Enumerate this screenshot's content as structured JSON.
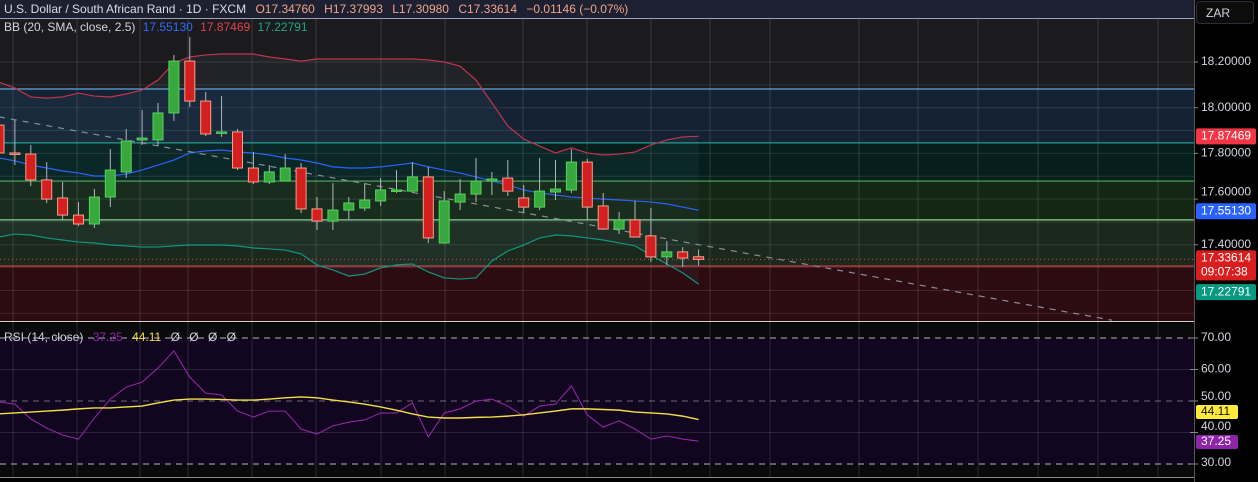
{
  "header": {
    "symbol_title": "U.S. Dollar / South African Rand · 1D · FXCM",
    "open": "O17.34760",
    "high": "H17.37993",
    "low": "L17.30980",
    "close": "C17.33614",
    "change": "−0.01146 (−0.07%)"
  },
  "bb_legend": {
    "label": "BB (20, SMA, close, 2.5)",
    "basis": "17.55130",
    "upper": "17.87469",
    "lower": "17.22791"
  },
  "rsi_legend": {
    "label": "RSI (14, close)",
    "rsi": "37.25",
    "ma": "44.11",
    "extra": [
      "Ø",
      "Ø",
      "Ø",
      "Ø"
    ]
  },
  "currency_button": "ZAR",
  "price_axis": {
    "labels": [
      "18.20000",
      "18.00000",
      "17.80000",
      "17.60000",
      "17.40000"
    ]
  },
  "rsi_axis": {
    "labels": [
      "70.00",
      "60.00",
      "50.00",
      "40.00",
      "30.00"
    ]
  },
  "badges": {
    "bb_upper": "17.87469",
    "bb_basis": "17.55130",
    "last_price": "17.33614",
    "countdown": "09:07:38",
    "bb_lower": "17.22791",
    "rsi_ma": "44.11",
    "rsi": "37.25"
  },
  "colors": {
    "up": "#38a83e",
    "down": "#d21f1f",
    "down_border": "#f5a088",
    "wick": "#b2b5be",
    "bb_upper": "#c2334f",
    "bb_basis": "#2962ff",
    "bb_lower": "#12957f",
    "rsi": "#9c27b0",
    "rsi_ma": "#f2df4a",
    "badge_upper": "#f23645",
    "badge_basis": "#2962ff",
    "badge_last": "#d81e1e",
    "badge_lower": "#089981",
    "badge_rsi_ma": "#ffeb3b",
    "badge_rsi": "#8e24aa"
  },
  "chart_data": {
    "type": "candlestick",
    "timeframe": "1D",
    "price_axis": {
      "ticks": [
        18.2,
        18.0,
        17.8,
        17.6,
        17.4
      ],
      "range": [
        17.05,
        18.33
      ]
    },
    "ohlc": [
      [
        17.924,
        17.946,
        17.771,
        17.802
      ],
      [
        17.802,
        17.946,
        17.749,
        17.797
      ],
      [
        17.797,
        17.837,
        17.657,
        17.684
      ],
      [
        17.684,
        17.762,
        17.583,
        17.6
      ],
      [
        17.605,
        17.675,
        17.509,
        17.53
      ],
      [
        17.53,
        17.587,
        17.482,
        17.491
      ],
      [
        17.491,
        17.644,
        17.474,
        17.609
      ],
      [
        17.609,
        17.819,
        17.565,
        17.727
      ],
      [
        17.719,
        17.907,
        17.692,
        17.854
      ],
      [
        17.859,
        17.99,
        17.837,
        17.867
      ],
      [
        17.859,
        18.021,
        17.832,
        17.977
      ],
      [
        17.977,
        18.231,
        17.942,
        18.204
      ],
      [
        18.204,
        18.309,
        18.003,
        18.029
      ],
      [
        18.029,
        18.069,
        17.876,
        17.885
      ],
      [
        17.889,
        18.051,
        17.872,
        17.894
      ],
      [
        17.894,
        17.907,
        17.727,
        17.736
      ],
      [
        17.736,
        17.806,
        17.666,
        17.675
      ],
      [
        17.675,
        17.749,
        17.666,
        17.719
      ],
      [
        17.679,
        17.797,
        17.679,
        17.736
      ],
      [
        17.736,
        17.758,
        17.539,
        17.557
      ],
      [
        17.557,
        17.609,
        17.465,
        17.504
      ],
      [
        17.504,
        17.67,
        17.465,
        17.552
      ],
      [
        17.552,
        17.609,
        17.513,
        17.583
      ],
      [
        17.561,
        17.67,
        17.548,
        17.596
      ],
      [
        17.592,
        17.692,
        17.57,
        17.64
      ],
      [
        17.635,
        17.727,
        17.627,
        17.64
      ],
      [
        17.635,
        17.762,
        17.627,
        17.697
      ],
      [
        17.697,
        17.741,
        17.408,
        17.43
      ],
      [
        17.408,
        17.635,
        17.404,
        17.592
      ],
      [
        17.587,
        17.688,
        17.552,
        17.622
      ],
      [
        17.622,
        17.78,
        17.587,
        17.679
      ],
      [
        17.679,
        17.719,
        17.618,
        17.688
      ],
      [
        17.692,
        17.771,
        17.614,
        17.635
      ],
      [
        17.605,
        17.662,
        17.539,
        17.565
      ],
      [
        17.565,
        17.78,
        17.552,
        17.635
      ],
      [
        17.631,
        17.771,
        17.596,
        17.644
      ],
      [
        17.64,
        17.819,
        17.627,
        17.762
      ],
      [
        17.762,
        17.776,
        17.509,
        17.565
      ],
      [
        17.57,
        17.627,
        17.465,
        17.469
      ],
      [
        17.469,
        17.544,
        17.447,
        17.509
      ],
      [
        17.509,
        17.592,
        17.434,
        17.434
      ],
      [
        17.439,
        17.561,
        17.325,
        17.347
      ],
      [
        17.347,
        17.417,
        17.312,
        17.369
      ],
      [
        17.369,
        17.39,
        17.303,
        17.342
      ],
      [
        17.3476,
        17.37993,
        17.3098,
        17.33614
      ]
    ],
    "bollinger": {
      "upper": [
        18.112,
        18.086,
        18.047,
        18.042,
        18.047,
        18.064,
        18.051,
        18.047,
        18.06,
        18.077,
        18.121,
        18.196,
        18.222,
        18.231,
        18.235,
        18.235,
        18.235,
        18.222,
        18.213,
        18.204,
        18.213,
        18.213,
        18.213,
        18.213,
        18.213,
        18.213,
        18.213,
        18.209,
        18.2,
        18.182,
        18.121,
        18.021,
        17.92,
        17.863,
        17.832,
        17.802,
        17.824,
        17.802,
        17.793,
        17.797,
        17.806,
        17.837,
        17.859,
        17.872,
        17.8747
      ],
      "basis": [
        17.78,
        17.767,
        17.749,
        17.736,
        17.723,
        17.714,
        17.701,
        17.701,
        17.71,
        17.727,
        17.749,
        17.771,
        17.802,
        17.811,
        17.815,
        17.806,
        17.802,
        17.793,
        17.78,
        17.771,
        17.758,
        17.741,
        17.736,
        17.736,
        17.741,
        17.749,
        17.758,
        17.741,
        17.727,
        17.714,
        17.697,
        17.679,
        17.662,
        17.64,
        17.627,
        17.618,
        17.609,
        17.605,
        17.6,
        17.596,
        17.592,
        17.587,
        17.579,
        17.565,
        17.5513
      ],
      "lower": [
        17.434,
        17.447,
        17.443,
        17.43,
        17.421,
        17.412,
        17.408,
        17.399,
        17.395,
        17.39,
        17.39,
        17.395,
        17.399,
        17.399,
        17.399,
        17.395,
        17.386,
        17.382,
        17.377,
        17.36,
        17.312,
        17.29,
        17.263,
        17.272,
        17.299,
        17.312,
        17.316,
        17.281,
        17.255,
        17.25,
        17.255,
        17.329,
        17.373,
        17.399,
        17.43,
        17.443,
        17.439,
        17.43,
        17.421,
        17.408,
        17.395,
        17.355,
        17.316,
        17.277,
        17.2279
      ]
    },
    "levels": [
      {
        "price": 18.082,
        "color": "#5fa8e0"
      },
      {
        "price": 17.846,
        "color": "#1f9c8c"
      },
      {
        "price": 17.679,
        "color": "#4caf50"
      },
      {
        "price": 17.509,
        "color": "#8bd18f"
      },
      {
        "price": 17.307,
        "color": "#e0474f"
      }
    ],
    "zones": [
      "#1b1b1e",
      "#142233",
      "#061f1d",
      "#142614",
      "#1a291c",
      "#2d0c11"
    ],
    "trendline": {
      "start": {
        "index": 0,
        "price": 17.96
      },
      "end": {
        "index": 70,
        "price": 17.07
      },
      "style": "dashed"
    },
    "last_price_line": {
      "price": 17.33614,
      "style": "dotted"
    },
    "rsi": {
      "ticks": [
        70,
        60,
        50,
        40,
        30
      ],
      "bands": [
        70,
        50,
        30
      ],
      "values": [
        49.7,
        49.0,
        44.3,
        41.4,
        39.2,
        37.9,
        44.6,
        50.6,
        54.4,
        56.0,
        60.5,
        65.9,
        57.6,
        52.5,
        51.9,
        46.8,
        44.9,
        46.8,
        46.8,
        41.1,
        39.5,
        42.1,
        43.3,
        44.0,
        46.2,
        46.2,
        49.4,
        38.6,
        46.2,
        47.5,
        50.0,
        50.6,
        48.4,
        45.2,
        48.4,
        49.0,
        54.8,
        45.6,
        41.7,
        43.7,
        41.1,
        37.9,
        38.9,
        37.9,
        37.25
      ],
      "ma": [
        45.9,
        46.2,
        46.5,
        46.8,
        47.1,
        47.5,
        47.8,
        47.8,
        48.1,
        48.4,
        49.4,
        50.3,
        50.6,
        50.6,
        50.5,
        50.3,
        50.3,
        50.6,
        51.0,
        51.3,
        51.0,
        50.3,
        49.7,
        49.0,
        48.1,
        47.1,
        45.9,
        44.9,
        44.6,
        44.6,
        44.8,
        44.9,
        45.2,
        45.6,
        46.2,
        46.8,
        47.5,
        47.5,
        47.3,
        47.1,
        46.5,
        46.2,
        45.9,
        45.2,
        44.11
      ]
    }
  }
}
